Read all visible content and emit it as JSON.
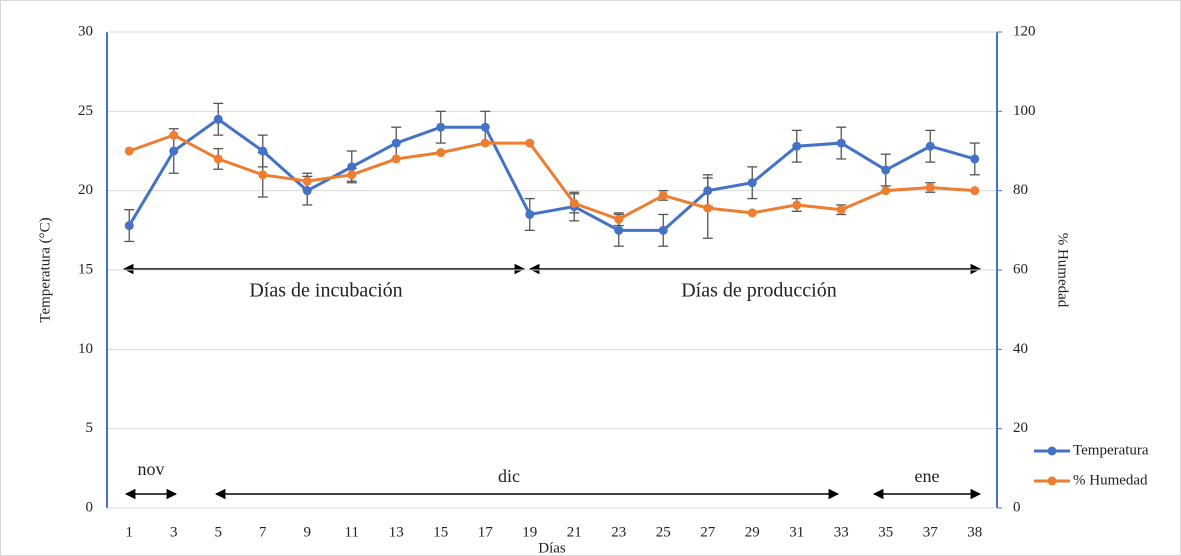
{
  "chart_data": {
    "type": "line",
    "categories": [
      "1",
      "3",
      "5",
      "7",
      "9",
      "11",
      "13",
      "15",
      "17",
      "19",
      "21",
      "23",
      "25",
      "27",
      "29",
      "31",
      "33",
      "35",
      "37",
      "38"
    ],
    "series": [
      {
        "name": "Temperatura",
        "color": "#4472c4",
        "axis": "y",
        "values": [
          17.8,
          22.5,
          24.5,
          22.5,
          20,
          21.5,
          23,
          24,
          24,
          18.5,
          19,
          17.5,
          17.5,
          20,
          20.5,
          22.8,
          23,
          21.3,
          22.8,
          22
        ],
        "errors": [
          1,
          1.4,
          1,
          1,
          0.9,
          1,
          1,
          1,
          1,
          1,
          0.9,
          1,
          1,
          1,
          1,
          1,
          1,
          1,
          1,
          1
        ]
      },
      {
        "name": "% Humedad",
        "color": "#ed7d31",
        "axis": "y2",
        "values": [
          90,
          94,
          88,
          84,
          82.4,
          84,
          88,
          89.6,
          92,
          92,
          76.8,
          72.8,
          78.8,
          75.6,
          74.4,
          76.4,
          75.2,
          80,
          80.8,
          80
        ],
        "errors": [
          0,
          0,
          2.6,
          5.6,
          2,
          1.6,
          0,
          0,
          0,
          0,
          2.4,
          1.6,
          1.2,
          7.6,
          0,
          1.6,
          1.2,
          0,
          1.2,
          0
        ]
      }
    ],
    "ylim": [
      0,
      30
    ],
    "yticks": [
      0,
      5,
      10,
      15,
      20,
      25,
      30
    ],
    "y2lim": [
      0,
      120
    ],
    "y2ticks": [
      0,
      20,
      40,
      60,
      80,
      100,
      120
    ],
    "ylabel": "Temperatura (°C)",
    "y2label": "% Humedad",
    "xlabel": "Días",
    "grid": true,
    "annotations": [
      "Días de incubación",
      "Días de producción",
      "nov",
      "dic",
      "ene"
    ]
  }
}
